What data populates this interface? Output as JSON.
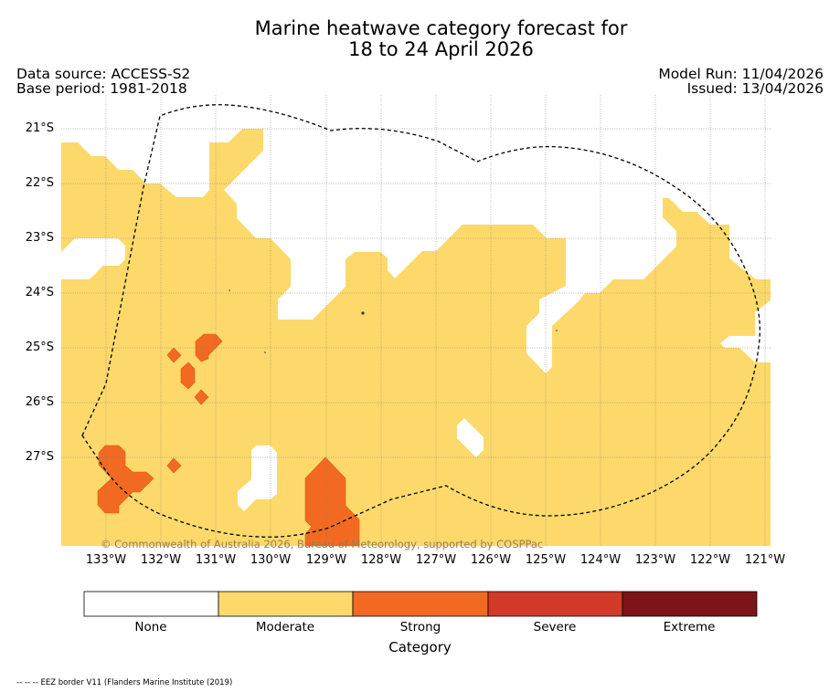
{
  "title_line1": "Marine heatwave category forecast for",
  "title_line2": "18 to 24 April 2026",
  "data_source": "Data source: ACCESS-S2",
  "base_period": "Base period: 1981-2018",
  "model_run": "Model Run: 11/04/2026",
  "issued": "Issued: 13/04/2026",
  "copyright": "© Commonwealth of Australia 2026, Bureau of Meteorology, supported by COSPPac",
  "lat_labels": [
    "21°S",
    "22°S",
    "23°S",
    "24°S",
    "25°S",
    "26°S",
    "27°S"
  ],
  "lon_labels": [
    "133°W",
    "132°W",
    "131°W",
    "130°W",
    "129°W",
    "128°W",
    "127°W",
    "126°W",
    "125°W",
    "124°W",
    "123°W",
    "122°W",
    "121°W"
  ],
  "colorbar": {
    "title": "Category",
    "categories": [
      {
        "label": "None",
        "color": "#ffffff"
      },
      {
        "label": "Moderate",
        "color": "#fcd96a"
      },
      {
        "label": "Strong",
        "color": "#f26a22"
      },
      {
        "label": "Severe",
        "color": "#d13a28"
      },
      {
        "label": "Extreme",
        "color": "#7e1418"
      }
    ]
  },
  "footnote": "-- -- -- EEZ border V11 (Flanders Marine Institute (2019)"
}
